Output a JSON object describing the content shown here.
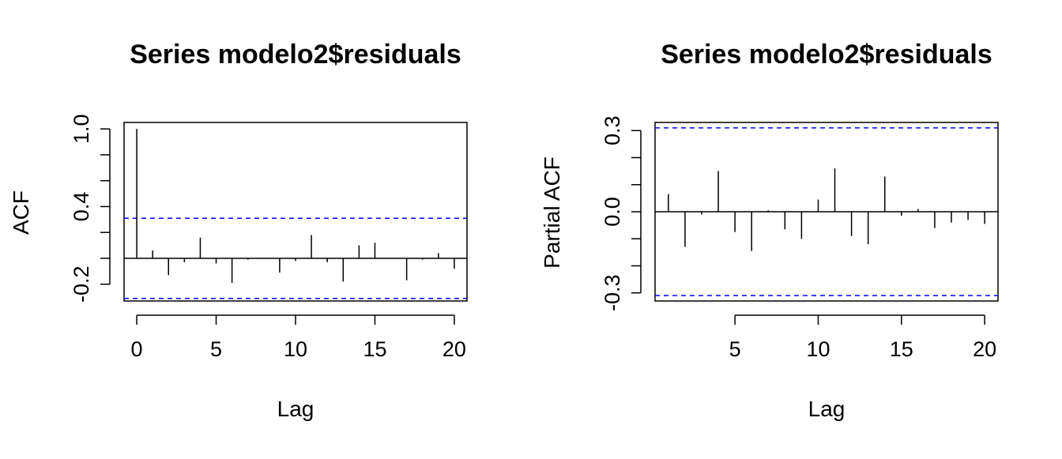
{
  "chart_data": [
    {
      "type": "bar",
      "title": "Series  modelo2$residuals",
      "xlabel": "Lag",
      "ylabel": "ACF",
      "xlim": [
        -0.8,
        20.8
      ],
      "ylim": [
        -0.33,
        1.05
      ],
      "x_ticks": [
        0,
        5,
        10,
        15,
        20
      ],
      "y_ticks_labeled": [
        1.0,
        0.4,
        -0.2
      ],
      "y_tick_labels": [
        "1.0",
        "0.4",
        "-0.2"
      ],
      "y_ticks_all": [
        1.0,
        0.8,
        0.6,
        0.4,
        0.2,
        0.0,
        -0.2
      ],
      "x": [
        0,
        1,
        2,
        3,
        4,
        5,
        6,
        7,
        8,
        9,
        10,
        11,
        12,
        13,
        14,
        15,
        16,
        17,
        18,
        19,
        20
      ],
      "values": [
        1.0,
        0.06,
        -0.13,
        -0.03,
        0.16,
        -0.04,
        -0.19,
        -0.01,
        0.0,
        -0.11,
        -0.02,
        0.18,
        -0.03,
        -0.18,
        0.1,
        0.12,
        0.0,
        -0.17,
        -0.01,
        0.04,
        -0.08
      ],
      "confidence_bound": 0.31,
      "bound_color": "#0000ff",
      "bar_color": "#000000"
    },
    {
      "type": "bar",
      "title": "Series  modelo2$residuals",
      "xlabel": "Lag",
      "ylabel": "Partial ACF",
      "xlim": [
        0.2,
        20.8
      ],
      "ylim": [
        -0.33,
        0.33
      ],
      "x_ticks": [
        5,
        10,
        15,
        20
      ],
      "y_ticks_labeled": [
        0.3,
        0.0,
        -0.3
      ],
      "y_tick_labels": [
        "0.3",
        "0.0",
        "-0.3"
      ],
      "y_ticks_all": [
        0.3,
        0.2,
        0.1,
        0.0,
        -0.1,
        -0.2,
        -0.3
      ],
      "x": [
        1,
        2,
        3,
        4,
        5,
        6,
        7,
        8,
        9,
        10,
        11,
        12,
        13,
        14,
        15,
        16,
        17,
        18,
        19,
        20
      ],
      "values": [
        0.065,
        -0.13,
        -0.01,
        0.15,
        -0.075,
        -0.145,
        0.005,
        -0.065,
        -0.1,
        0.045,
        0.16,
        -0.09,
        -0.12,
        0.13,
        -0.015,
        0.01,
        -0.06,
        -0.04,
        -0.03,
        -0.045
      ],
      "confidence_bound": 0.31,
      "bound_color": "#0000ff",
      "bar_color": "#000000"
    }
  ]
}
